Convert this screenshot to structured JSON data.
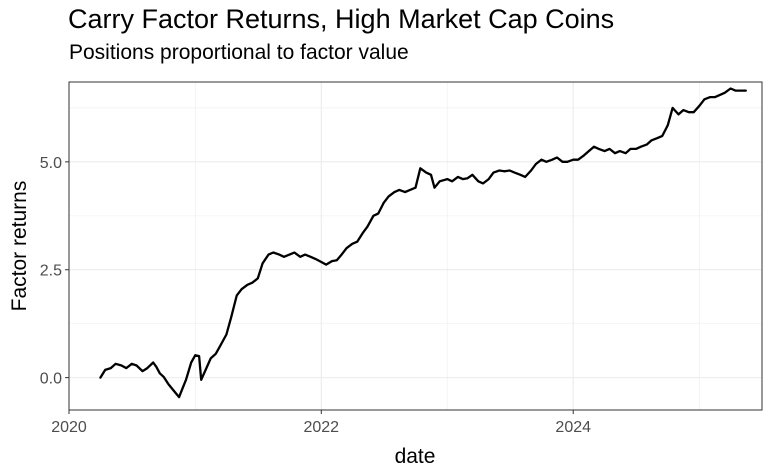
{
  "chart_data": {
    "type": "line",
    "title": "Carry Factor Returns, High Market Cap Coins",
    "subtitle": "Positions proportional to factor value",
    "xlabel": "date",
    "ylabel": "Factor returns",
    "x_axis_type": "date",
    "xlim": [
      "2020-01-01",
      "2025-07-01"
    ],
    "ylim": [
      -0.75,
      6.85
    ],
    "x_ticks": [
      {
        "label": "2020",
        "value": "2020-01-01"
      },
      {
        "label": "2022",
        "value": "2022-01-01"
      },
      {
        "label": "2024",
        "value": "2024-01-01"
      }
    ],
    "y_ticks": [
      {
        "label": "0.0",
        "value": 0.0
      },
      {
        "label": "2.5",
        "value": 2.5
      },
      {
        "label": "5.0",
        "value": 5.0
      }
    ],
    "grid": true,
    "legend": "none",
    "line_color": "#000000",
    "series": [
      {
        "points": [
          [
            "2020-04-01",
            0.0
          ],
          [
            "2020-04-15",
            0.18
          ],
          [
            "2020-05-01",
            0.22
          ],
          [
            "2020-05-15",
            0.32
          ],
          [
            "2020-06-01",
            0.28
          ],
          [
            "2020-06-15",
            0.22
          ],
          [
            "2020-07-01",
            0.32
          ],
          [
            "2020-07-15",
            0.28
          ],
          [
            "2020-08-01",
            0.15
          ],
          [
            "2020-08-15",
            0.22
          ],
          [
            "2020-09-01",
            0.35
          ],
          [
            "2020-09-10",
            0.25
          ],
          [
            "2020-09-20",
            0.1
          ],
          [
            "2020-10-01",
            0.02
          ],
          [
            "2020-10-15",
            -0.15
          ],
          [
            "2020-11-01",
            -0.32
          ],
          [
            "2020-11-15",
            -0.45
          ],
          [
            "2020-11-25",
            -0.25
          ],
          [
            "2020-12-05",
            -0.05
          ],
          [
            "2020-12-20",
            0.35
          ],
          [
            "2021-01-01",
            0.52
          ],
          [
            "2021-01-12",
            0.5
          ],
          [
            "2021-01-18",
            -0.05
          ],
          [
            "2021-02-01",
            0.2
          ],
          [
            "2021-02-15",
            0.45
          ],
          [
            "2021-03-01",
            0.55
          ],
          [
            "2021-03-15",
            0.75
          ],
          [
            "2021-04-01",
            1.0
          ],
          [
            "2021-04-15",
            1.4
          ],
          [
            "2021-05-01",
            1.9
          ],
          [
            "2021-05-15",
            2.05
          ],
          [
            "2021-06-01",
            2.15
          ],
          [
            "2021-06-15",
            2.2
          ],
          [
            "2021-07-01",
            2.3
          ],
          [
            "2021-07-15",
            2.65
          ],
          [
            "2021-08-01",
            2.85
          ],
          [
            "2021-08-15",
            2.9
          ],
          [
            "2021-09-01",
            2.85
          ],
          [
            "2021-09-15",
            2.8
          ],
          [
            "2021-10-01",
            2.85
          ],
          [
            "2021-10-15",
            2.9
          ],
          [
            "2021-11-01",
            2.8
          ],
          [
            "2021-11-15",
            2.85
          ],
          [
            "2021-12-01",
            2.8
          ],
          [
            "2021-12-15",
            2.75
          ],
          [
            "2022-01-01",
            2.68
          ],
          [
            "2022-01-15",
            2.62
          ],
          [
            "2022-02-01",
            2.7
          ],
          [
            "2022-02-15",
            2.72
          ],
          [
            "2022-03-01",
            2.85
          ],
          [
            "2022-03-15",
            3.0
          ],
          [
            "2022-04-01",
            3.1
          ],
          [
            "2022-04-15",
            3.15
          ],
          [
            "2022-05-01",
            3.35
          ],
          [
            "2022-05-15",
            3.5
          ],
          [
            "2022-06-01",
            3.75
          ],
          [
            "2022-06-15",
            3.8
          ],
          [
            "2022-07-01",
            4.05
          ],
          [
            "2022-07-15",
            4.2
          ],
          [
            "2022-08-01",
            4.3
          ],
          [
            "2022-08-15",
            4.35
          ],
          [
            "2022-09-01",
            4.3
          ],
          [
            "2022-09-15",
            4.35
          ],
          [
            "2022-10-01",
            4.4
          ],
          [
            "2022-10-15",
            4.85
          ],
          [
            "2022-11-01",
            4.75
          ],
          [
            "2022-11-15",
            4.7
          ],
          [
            "2022-11-25",
            4.4
          ],
          [
            "2022-12-10",
            4.55
          ],
          [
            "2023-01-01",
            4.6
          ],
          [
            "2023-01-15",
            4.55
          ],
          [
            "2023-02-01",
            4.65
          ],
          [
            "2023-02-15",
            4.6
          ],
          [
            "2023-03-01",
            4.62
          ],
          [
            "2023-03-15",
            4.7
          ],
          [
            "2023-04-01",
            4.55
          ],
          [
            "2023-04-15",
            4.5
          ],
          [
            "2023-05-01",
            4.6
          ],
          [
            "2023-05-15",
            4.75
          ],
          [
            "2023-06-01",
            4.8
          ],
          [
            "2023-06-15",
            4.78
          ],
          [
            "2023-07-01",
            4.8
          ],
          [
            "2023-07-15",
            4.75
          ],
          [
            "2023-08-01",
            4.7
          ],
          [
            "2023-08-15",
            4.65
          ],
          [
            "2023-09-01",
            4.8
          ],
          [
            "2023-09-15",
            4.95
          ],
          [
            "2023-10-01",
            5.05
          ],
          [
            "2023-10-15",
            5.0
          ],
          [
            "2023-11-01",
            5.05
          ],
          [
            "2023-11-15",
            5.1
          ],
          [
            "2023-12-01",
            5.0
          ],
          [
            "2023-12-15",
            5.0
          ],
          [
            "2024-01-01",
            5.05
          ],
          [
            "2024-01-15",
            5.05
          ],
          [
            "2024-02-01",
            5.15
          ],
          [
            "2024-02-15",
            5.25
          ],
          [
            "2024-03-01",
            5.35
          ],
          [
            "2024-03-15",
            5.3
          ],
          [
            "2024-04-01",
            5.25
          ],
          [
            "2024-04-15",
            5.3
          ],
          [
            "2024-05-01",
            5.2
          ],
          [
            "2024-05-15",
            5.25
          ],
          [
            "2024-06-01",
            5.2
          ],
          [
            "2024-06-15",
            5.3
          ],
          [
            "2024-07-01",
            5.3
          ],
          [
            "2024-07-15",
            5.35
          ],
          [
            "2024-08-01",
            5.4
          ],
          [
            "2024-08-15",
            5.5
          ],
          [
            "2024-09-01",
            5.55
          ],
          [
            "2024-09-15",
            5.6
          ],
          [
            "2024-10-01",
            5.85
          ],
          [
            "2024-10-15",
            6.25
          ],
          [
            "2024-11-01",
            6.1
          ],
          [
            "2024-11-15",
            6.2
          ],
          [
            "2024-12-01",
            6.15
          ],
          [
            "2024-12-15",
            6.15
          ],
          [
            "2025-01-01",
            6.3
          ],
          [
            "2025-01-15",
            6.45
          ],
          [
            "2025-02-01",
            6.5
          ],
          [
            "2025-02-15",
            6.5
          ],
          [
            "2025-03-01",
            6.55
          ],
          [
            "2025-03-15",
            6.6
          ],
          [
            "2025-04-01",
            6.7
          ],
          [
            "2025-04-15",
            6.65
          ],
          [
            "2025-05-15",
            6.65
          ]
        ]
      }
    ]
  }
}
